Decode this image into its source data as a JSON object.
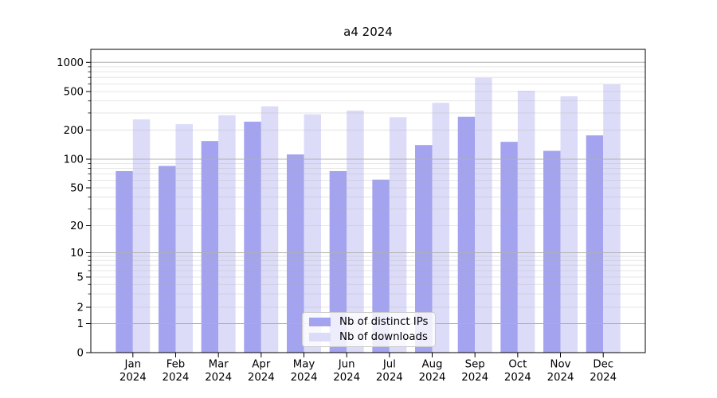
{
  "title": "a4 2024",
  "chart_data": {
    "type": "bar",
    "title": "a4 2024",
    "categories": [
      "Jan 2024",
      "Feb 2024",
      "Mar 2024",
      "Apr 2024",
      "May 2024",
      "Jun 2024",
      "Jul 2024",
      "Aug 2024",
      "Sep 2024",
      "Oct 2024",
      "Nov 2024",
      "Dec 2024"
    ],
    "series": [
      {
        "name": "Nb of distinct IPs",
        "color": "#a3a3f0",
        "values": [
          75,
          85,
          154,
          244,
          112,
          75,
          61,
          140,
          274,
          151,
          122,
          176
        ]
      },
      {
        "name": "Nb of downloads",
        "color": "#dcdcf8",
        "values": [
          258,
          230,
          284,
          352,
          291,
          318,
          271,
          382,
          692,
          510,
          446,
          592
        ]
      }
    ],
    "xlabel": "",
    "ylabel": "",
    "yscale": "symlog",
    "y_ticks": [
      0,
      1,
      2,
      5,
      10,
      20,
      50,
      100,
      200,
      500,
      1000
    ],
    "major_grid_values": [
      1,
      10,
      100,
      1000
    ],
    "ylim": [
      0,
      1400
    ],
    "grid": "horizontal major + minor, drawn over bars",
    "legend_position": "lower center",
    "colors": {
      "grid": "#b0b0b0",
      "axis": "#000000",
      "text": "#000000",
      "background": "#ffffff"
    }
  },
  "legend": {
    "items": [
      {
        "label": "Nb of distinct IPs"
      },
      {
        "label": "Nb of downloads"
      }
    ]
  }
}
